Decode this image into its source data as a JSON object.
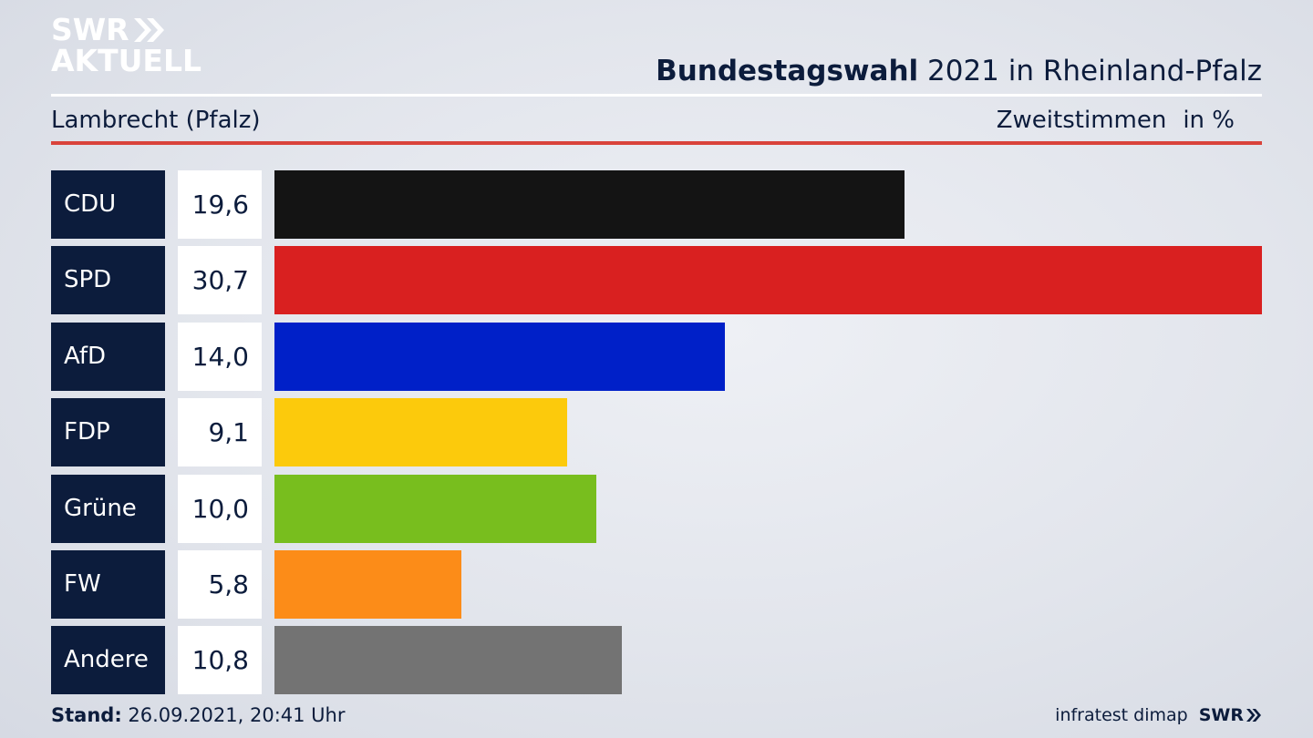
{
  "logo": {
    "line1": "SWR",
    "line2": "AKTUELL"
  },
  "header": {
    "title_bold": "Bundestagswahl",
    "title_rest": " 2021 in Rheinland-Pfalz",
    "location": "Lambrecht (Pfalz)",
    "metric": "Zweitstimmen",
    "unit": "in %"
  },
  "chart_data": {
    "type": "bar",
    "orientation": "horizontal",
    "categories": [
      "CDU",
      "SPD",
      "AfD",
      "FDP",
      "Grüne",
      "FW",
      "Andere"
    ],
    "values": [
      19.6,
      30.7,
      14.0,
      9.1,
      10.0,
      5.8,
      10.8
    ],
    "value_labels": [
      "19,6",
      "30,7",
      "14,0",
      "9,1",
      "10,0",
      "5,8",
      "10,8"
    ],
    "colors": [
      "#141414",
      "#d92020",
      "#0020c8",
      "#fcca0c",
      "#78be1e",
      "#fc8c18",
      "#737373"
    ],
    "xlim": [
      0,
      30.7
    ],
    "grid": false,
    "legend": "none"
  },
  "footer": {
    "stand_label": "Stand:",
    "stand_value": " 26.09.2021, 20:41 Uhr",
    "source": "infratest dimap",
    "brand": "SWR"
  }
}
